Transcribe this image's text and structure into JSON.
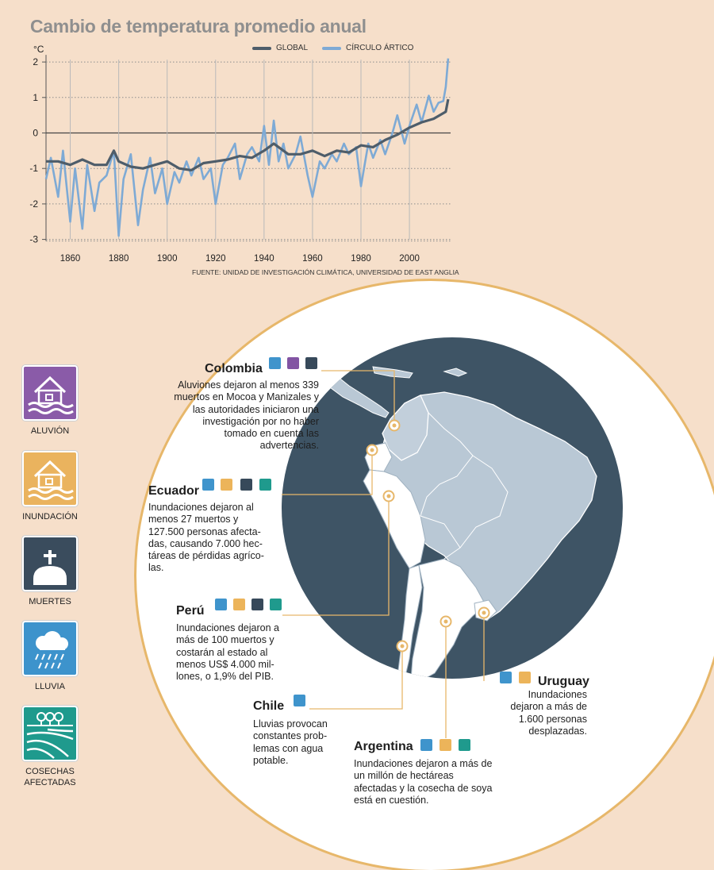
{
  "title": "Cambio de temperatura promedio anual",
  "unit": "°C",
  "source": "FUENTE: UNIDAD DE INVESTIGACIÓN CLIMÁTICA, UNIVERSIDAD DE EAST ANGLIA",
  "colors": {
    "global": "#4e5d6a",
    "arctic": "#7eaad5",
    "accent": "#e7b76a",
    "bg": "#f6dfca"
  },
  "chart_data": {
    "type": "line",
    "title": "Cambio de temperatura promedio anual",
    "ylabel": "°C",
    "xlim": [
      1850,
      2017
    ],
    "ylim": [
      -3,
      2.2
    ],
    "xticks": [
      1860,
      1880,
      1900,
      1920,
      1940,
      1960,
      1980,
      2000
    ],
    "yticks": [
      2,
      1,
      0,
      -1,
      -2,
      -3
    ],
    "grid": "vertical-dotted-horizontal",
    "legend_position": "top",
    "series": [
      {
        "name": "GLOBAL",
        "color": "#4e5d6a",
        "x": [
          1850,
          1855,
          1860,
          1865,
          1870,
          1875,
          1878,
          1880,
          1885,
          1890,
          1895,
          1900,
          1905,
          1910,
          1915,
          1920,
          1925,
          1930,
          1935,
          1940,
          1944,
          1950,
          1955,
          1960,
          1965,
          1970,
          1975,
          1980,
          1985,
          1990,
          1995,
          2000,
          2005,
          2010,
          2015,
          2016
        ],
        "y": [
          -0.8,
          -0.8,
          -0.9,
          -0.75,
          -0.9,
          -0.9,
          -0.5,
          -0.8,
          -0.95,
          -1.0,
          -0.9,
          -0.8,
          -1.0,
          -1.05,
          -0.85,
          -0.8,
          -0.75,
          -0.65,
          -0.7,
          -0.5,
          -0.3,
          -0.6,
          -0.6,
          -0.5,
          -0.65,
          -0.5,
          -0.55,
          -0.35,
          -0.4,
          -0.2,
          -0.05,
          0.15,
          0.3,
          0.4,
          0.6,
          0.95
        ]
      },
      {
        "name": "CÍRCULO ÁRTICO",
        "color": "#7eaad5",
        "x": [
          1850,
          1852,
          1855,
          1857,
          1860,
          1862,
          1865,
          1867,
          1870,
          1872,
          1875,
          1878,
          1880,
          1882,
          1885,
          1888,
          1890,
          1893,
          1895,
          1898,
          1900,
          1903,
          1905,
          1908,
          1910,
          1913,
          1915,
          1918,
          1920,
          1923,
          1925,
          1928,
          1930,
          1933,
          1935,
          1938,
          1940,
          1942,
          1944,
          1946,
          1948,
          1950,
          1953,
          1955,
          1958,
          1960,
          1963,
          1965,
          1968,
          1970,
          1973,
          1975,
          1978,
          1980,
          1983,
          1985,
          1988,
          1990,
          1993,
          1995,
          1998,
          2000,
          2003,
          2005,
          2008,
          2010,
          2012,
          2014,
          2015,
          2016
        ],
        "y": [
          -1.3,
          -0.7,
          -1.8,
          -0.5,
          -2.5,
          -1.0,
          -2.7,
          -0.9,
          -2.2,
          -1.4,
          -1.2,
          -0.5,
          -2.9,
          -1.3,
          -0.6,
          -2.6,
          -1.6,
          -0.7,
          -1.7,
          -1.0,
          -2.0,
          -1.1,
          -1.4,
          -0.8,
          -1.2,
          -0.7,
          -1.3,
          -1.0,
          -2.0,
          -0.9,
          -0.7,
          -0.3,
          -1.3,
          -0.6,
          -0.4,
          -0.8,
          0.2,
          -0.9,
          0.35,
          -0.8,
          -0.3,
          -1.0,
          -0.6,
          -0.1,
          -1.2,
          -1.8,
          -0.8,
          -1.0,
          -0.6,
          -0.8,
          -0.3,
          -0.6,
          -0.4,
          -1.5,
          -0.3,
          -0.7,
          -0.2,
          -0.6,
          0.0,
          0.5,
          -0.3,
          0.2,
          0.8,
          0.3,
          1.05,
          0.6,
          0.85,
          0.9,
          1.3,
          2.1
        ]
      }
    ]
  },
  "categories": [
    {
      "label": "ALUVIÓN",
      "icon": "house-mudslide-icon",
      "color": "#8a5ba8"
    },
    {
      "label": "INUNDACIÓN",
      "icon": "house-flood-icon",
      "color": "#eab35e"
    },
    {
      "label": "MUERTES",
      "icon": "grave-cross-icon",
      "color": "#3a4c5d"
    },
    {
      "label": "LLUVIA",
      "icon": "rain-cloud-icon",
      "color": "#3d93cc"
    },
    {
      "label": "COSECHAS AFECTADAS",
      "icon": "crops-field-icon",
      "color": "#1f9a8d"
    }
  ],
  "countries": {
    "colombia": {
      "name": "Colombia",
      "desc": "Aluviones dejaron al menos 339 muertos en Mocoa y Manizales y las autoridades iniciaron una investigación por no haber tomado en cuenta las advertencias.",
      "tags": [
        "blue",
        "purple",
        "dark"
      ]
    },
    "ecuador": {
      "name": "Ecuador",
      "desc": "Inundaciones dejaron al menos 27 muertos y 127.500 personas afecta-das, causando 7.000 hec-táreas de pérdidas agríco-las.",
      "tags": [
        "blue",
        "orange",
        "dark",
        "teal"
      ]
    },
    "peru": {
      "name": "Perú",
      "desc": "Inundaciones dejaron a más de 100 muertos y costarán al estado al menos US$ 4.000 mil-lones, o 1,9% del PIB.",
      "tags": [
        "blue",
        "orange",
        "dark",
        "teal"
      ]
    },
    "chile": {
      "name": "Chile",
      "desc": "Lluvias provocan constantes prob-lemas con agua potable.",
      "tags": [
        "blue"
      ]
    },
    "argentina": {
      "name": "Argentina",
      "desc": "Inundaciones dejaron a más de un millón de hectáreas afectadas y la cosecha de soya está en cuestión.",
      "tags": [
        "blue",
        "orange",
        "teal"
      ]
    },
    "uruguay": {
      "name": "Uruguay",
      "desc": "Inundaciones dejaron a más de 1.600 personas desplazadas.",
      "tags": [
        "blue",
        "orange"
      ]
    }
  }
}
